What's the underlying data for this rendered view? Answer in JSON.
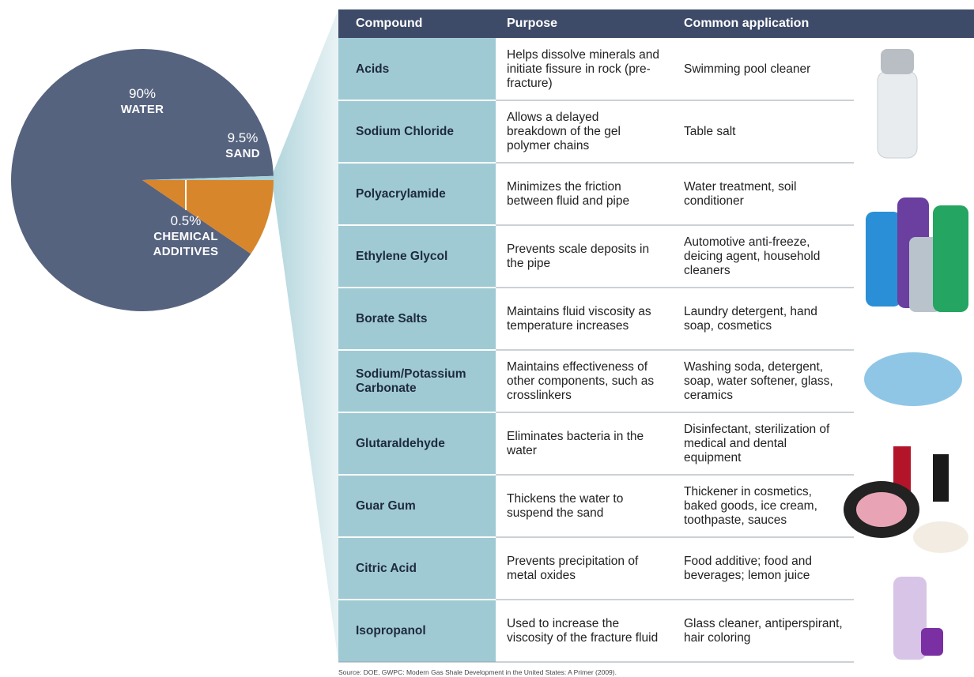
{
  "chart_data": {
    "type": "pie",
    "categories": [
      "WATER",
      "SAND",
      "CHEMICAL ADDITIVES"
    ],
    "values": [
      90,
      9.5,
      0.5
    ],
    "value_labels": [
      "90%",
      "9.5%",
      "0.5%"
    ],
    "colors": [
      "#56637f",
      "#d8862b",
      "#a8d0d8"
    ]
  },
  "table": {
    "header": [
      "Compound",
      "Purpose",
      "Common application"
    ],
    "rows": [
      [
        "Acids",
        "Helps dissolve minerals and initiate fissure in rock (pre-fracture)",
        "Swimming pool cleaner"
      ],
      [
        "Sodium Chloride",
        "Allows a delayed breakdown of the gel polymer chains",
        "Table salt"
      ],
      [
        "Polyacrylamide",
        "Minimizes the friction between fluid and pipe",
        "Water treatment, soil conditioner"
      ],
      [
        "Ethylene Glycol",
        "Prevents scale deposits in the pipe",
        "Automotive anti-freeze, deicing agent, household cleaners"
      ],
      [
        "Borate Salts",
        "Maintains fluid viscosity as temperature increases",
        "Laundry detergent, hand soap, cosmetics"
      ],
      [
        "Sodium/Potassium Carbonate",
        "Maintains effectiveness of other components, such as crosslinkers",
        "Washing soda, detergent, soap, water softener, glass, ceramics"
      ],
      [
        "Glutaraldehyde",
        "Eliminates bacteria in the water",
        "Disinfectant, sterilization of medical and dental equipment"
      ],
      [
        "Guar Gum",
        "Thickens the water to suspend the sand",
        "Thickener in cosmetics, baked goods, ice cream, toothpaste, sauces"
      ],
      [
        "Citric Acid",
        "Prevents precipitation of metal oxides",
        "Food additive; food and beverages; lemon juice"
      ],
      [
        "Isopropanol",
        "Used to increase the viscosity of the fracture fluid",
        "Glass cleaner, antiperspirant, hair coloring"
      ]
    ]
  },
  "source": "Source: DOE, GWPC: Modern Gas Shale Development in the United States: A Primer (2009)."
}
